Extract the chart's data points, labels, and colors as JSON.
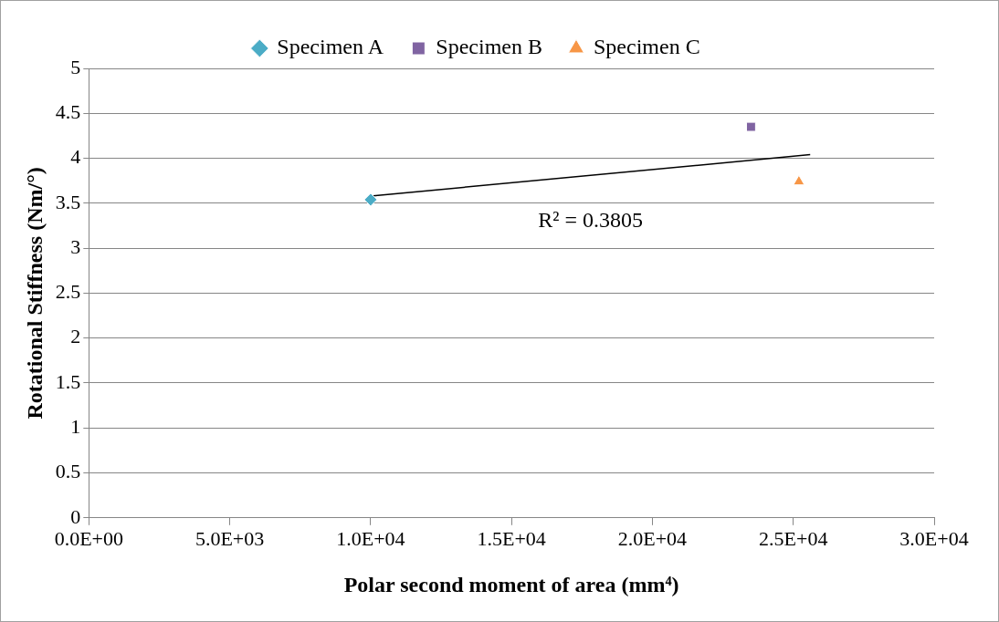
{
  "chart_data": {
    "type": "scatter",
    "xlabel": "Polar second moment of area (mm⁴)",
    "ylabel": "Rotational Stiffness (Nm/°)",
    "xlim": [
      0,
      30000
    ],
    "xticks": [
      {
        "value": 0,
        "label": "0.0E+00"
      },
      {
        "value": 5000,
        "label": "5.0E+03"
      },
      {
        "value": 10000,
        "label": "1.0E+04"
      },
      {
        "value": 15000,
        "label": "1.5E+04"
      },
      {
        "value": 20000,
        "label": "2.0E+04"
      },
      {
        "value": 25000,
        "label": "2.5E+04"
      },
      {
        "value": 30000,
        "label": "3.0E+04"
      }
    ],
    "ylim": [
      0,
      5
    ],
    "yticks": [
      0,
      0.5,
      1,
      1.5,
      2,
      2.5,
      3,
      3.5,
      4,
      4.5,
      5
    ],
    "grid": "y",
    "legend": "top",
    "series": [
      {
        "name": "Specimen A",
        "color": "#4bacc6",
        "marker": "diamond",
        "x": [
          10000
        ],
        "values": [
          3.54
        ]
      },
      {
        "name": "Specimen B",
        "color": "#8064a2",
        "marker": "square",
        "x": [
          23500
        ],
        "values": [
          4.35
        ]
      },
      {
        "name": "Specimen C",
        "color": "#f79646",
        "marker": "triangle",
        "x": [
          25200
        ],
        "values": [
          3.74
        ]
      },
      {
        "type": "line",
        "color": "#000000",
        "marker": "none",
        "x": [
          10000,
          25600
        ],
        "values": [
          3.58,
          4.04
        ]
      }
    ],
    "annotations": [
      "R² = 0.3805"
    ]
  }
}
